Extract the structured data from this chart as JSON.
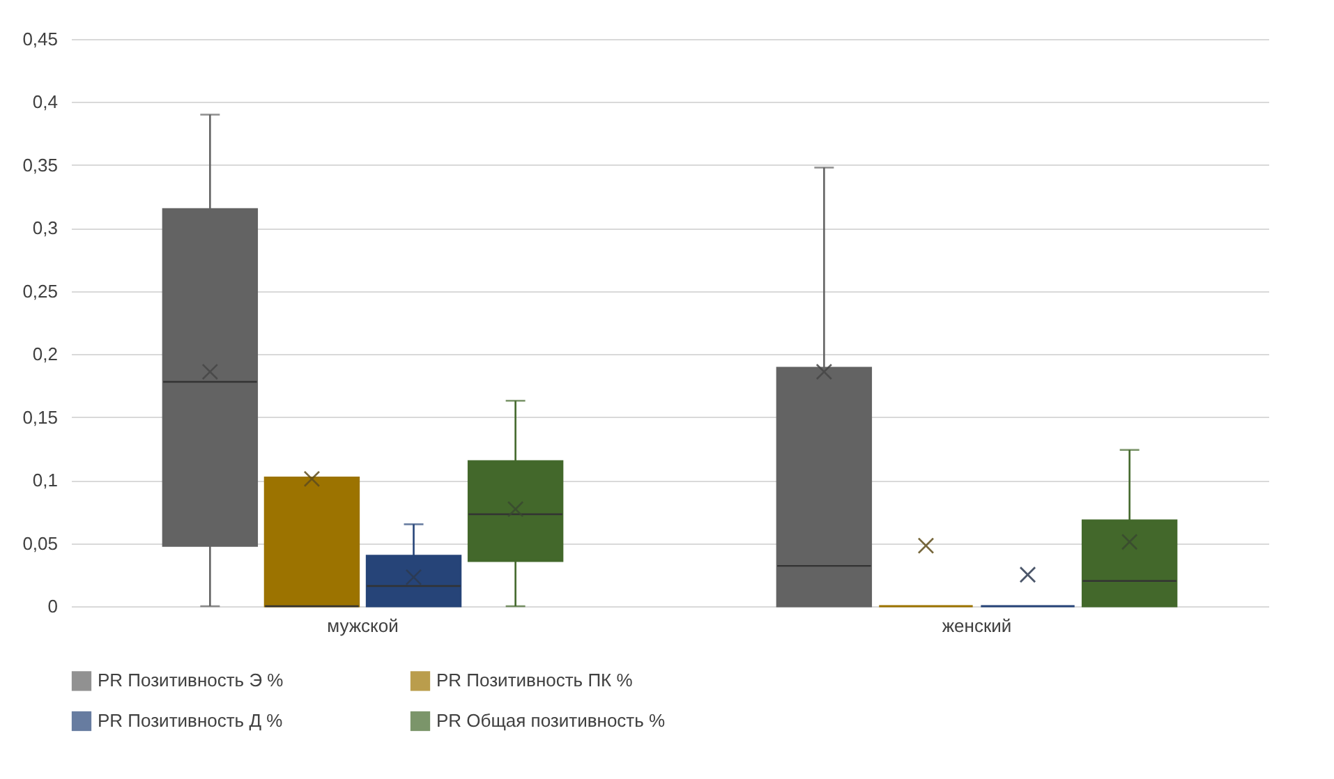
{
  "chart_data": {
    "type": "box",
    "categories": [
      "мужской",
      "женский"
    ],
    "series": [
      {
        "name": "PR Позитивность Э %",
        "color": "#636363",
        "boxes": [
          {
            "low": 0,
            "q1": 0.048,
            "median": 0.178,
            "q3": 0.315,
            "high": 0.39,
            "mean": 0.186
          },
          {
            "low": 0,
            "q1": 0,
            "median": 0.032,
            "q3": 0.189,
            "high": 0.348,
            "mean": 0.186
          }
        ]
      },
      {
        "name": "PR Позитивность ПК %",
        "color": "#9c7300",
        "boxes": [
          {
            "low": 0,
            "q1": 0,
            "median": 0,
            "q3": 0.102,
            "high": 0.102,
            "mean": 0.101
          },
          {
            "low": 0,
            "q1": 0,
            "median": 0,
            "q3": 0,
            "high": 0,
            "mean": 0.048
          }
        ]
      },
      {
        "name": "PR Позитивность Д %",
        "color": "#264478",
        "boxes": [
          {
            "low": 0,
            "q1": 0,
            "median": 0.016,
            "q3": 0.04,
            "high": 0.065,
            "mean": 0.023
          },
          {
            "low": 0,
            "q1": 0,
            "median": 0,
            "q3": 0,
            "high": 0,
            "mean": 0.025
          }
        ]
      },
      {
        "name": "PR Общая позитивность %",
        "color": "#43682b",
        "boxes": [
          {
            "low": 0,
            "q1": 0.036,
            "median": 0.073,
            "q3": 0.115,
            "high": 0.163,
            "mean": 0.077
          },
          {
            "low": 0,
            "q1": 0,
            "median": 0.02,
            "q3": 0.068,
            "high": 0.124,
            "mean": 0.051
          }
        ]
      }
    ],
    "ylim": [
      0,
      0.45
    ],
    "yticks": [
      0,
      {
        "value": 0.05,
        "label": "0,05"
      },
      {
        "value": 0.1,
        "label": "0,1"
      },
      {
        "value": 0.15,
        "label": "0,15"
      },
      {
        "value": 0.2,
        "label": "0,2"
      },
      {
        "value": 0.25,
        "label": "0,25"
      },
      {
        "value": 0.3,
        "label": "0,3"
      },
      {
        "value": 0.35,
        "label": "0,35"
      },
      {
        "value": 0.4,
        "label": "0,4"
      },
      {
        "value": 0.45,
        "label": "0,45"
      }
    ],
    "grid": "y",
    "legend": "bottom"
  }
}
